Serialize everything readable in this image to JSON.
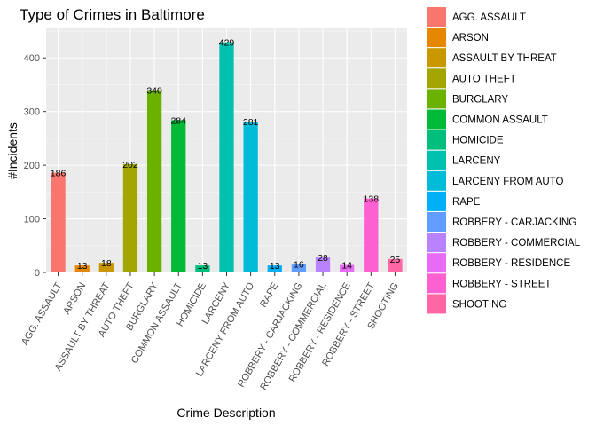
{
  "chart_data": {
    "type": "bar",
    "title": "Type of Crimes in Baltimore",
    "xlabel": "Crime Description",
    "ylabel": "#Incidents",
    "ylim": [
      0,
      455
    ],
    "yticks": [
      0,
      100,
      200,
      300,
      400
    ],
    "grid": true,
    "legend_position": "right",
    "categories": [
      "AGG. ASSAULT",
      "ARSON",
      "ASSAULT BY THREAT",
      "AUTO THEFT",
      "BURGLARY",
      "COMMON ASSAULT",
      "HOMICIDE",
      "LARCENY",
      "LARCENY FROM AUTO",
      "RAPE",
      "ROBBERY - CARJACKING",
      "ROBBERY - COMMERCIAL",
      "ROBBERY - RESIDENCE",
      "ROBBERY - STREET",
      "SHOOTING"
    ],
    "values": [
      186,
      13,
      18,
      202,
      340,
      284,
      13,
      429,
      281,
      13,
      16,
      28,
      14,
      138,
      25
    ],
    "colors": [
      "#F8766D",
      "#E58700",
      "#C99800",
      "#A3A500",
      "#6BB100",
      "#00BA38",
      "#00BF7D",
      "#00C0AF",
      "#00BCD8",
      "#00B0F6",
      "#619CFF",
      "#B983FF",
      "#E76BF3",
      "#FD61D1",
      "#FF67A4"
    ]
  }
}
